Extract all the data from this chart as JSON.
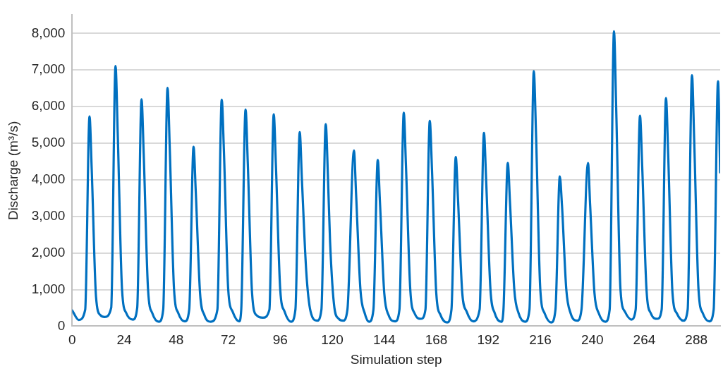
{
  "chart_data": {
    "type": "line",
    "xlabel": "Simulation step",
    "ylabel": "Discharge (m³/s)",
    "x": [
      0,
      3,
      6,
      8,
      9,
      11,
      13,
      15,
      18,
      20,
      21,
      23,
      25,
      28,
      30,
      32,
      33,
      35,
      37,
      40,
      42,
      44,
      45,
      47,
      49,
      52,
      54,
      56,
      57,
      59,
      61,
      64,
      67,
      69,
      70,
      72,
      74,
      77,
      78,
      80,
      81,
      83,
      85,
      88,
      91,
      93,
      94,
      96,
      98,
      101,
      103,
      105,
      106,
      108,
      110,
      113,
      115,
      117,
      118,
      119,
      121,
      123,
      125,
      127,
      130,
      131,
      133,
      135,
      137,
      139,
      141,
      142,
      144,
      146,
      149,
      151,
      153,
      154,
      156,
      158,
      161,
      163,
      165,
      166,
      168,
      170,
      173,
      175,
      177,
      178,
      180,
      182,
      185,
      188,
      190,
      191,
      193,
      195,
      198,
      199,
      201,
      202,
      204,
      206,
      209,
      211,
      213,
      214,
      216,
      218,
      221,
      223,
      225,
      226,
      228,
      230,
      233,
      235,
      238,
      239,
      241,
      243,
      246,
      248,
      250,
      251,
      253,
      255,
      258,
      260,
      262,
      263,
      265,
      267,
      270,
      272,
      274,
      275,
      277,
      279,
      282,
      284,
      286,
      287,
      289,
      291,
      294,
      296,
      298,
      299
    ],
    "series": [
      {
        "color": "#0070c0",
        "values": [
          430,
          170,
          450,
          5730,
          4300,
          800,
          300,
          250,
          500,
          7110,
          5300,
          1000,
          350,
          180,
          500,
          6200,
          4700,
          1000,
          350,
          120,
          450,
          6510,
          4900,
          1000,
          350,
          130,
          450,
          4900,
          3700,
          900,
          300,
          120,
          450,
          6190,
          4800,
          1000,
          400,
          130,
          450,
          5920,
          4500,
          900,
          300,
          230,
          450,
          5790,
          4400,
          1000,
          400,
          120,
          450,
          5300,
          4000,
          1500,
          400,
          150,
          450,
          5520,
          4100,
          2300,
          500,
          200,
          150,
          450,
          4800,
          3600,
          1000,
          350,
          120,
          450,
          4540,
          3400,
          900,
          300,
          130,
          450,
          5830,
          4400,
          1000,
          350,
          200,
          450,
          5610,
          4300,
          900,
          300,
          100,
          450,
          4620,
          3500,
          900,
          400,
          130,
          450,
          5280,
          4000,
          1000,
          350,
          120,
          450,
          4460,
          3400,
          1000,
          350,
          120,
          450,
          6970,
          5300,
          1000,
          350,
          100,
          450,
          4090,
          3300,
          1000,
          350,
          150,
          450,
          4460,
          3300,
          900,
          350,
          120,
          450,
          8060,
          6000,
          1000,
          400,
          180,
          450,
          5750,
          4400,
          1000,
          350,
          200,
          450,
          6230,
          4700,
          900,
          350,
          150,
          450,
          6860,
          5100,
          1000,
          350,
          130,
          450,
          6690,
          4200
        ]
      }
    ],
    "xlim": [
      0,
      299
    ],
    "xticks": [
      0,
      24,
      48,
      72,
      96,
      120,
      144,
      168,
      192,
      216,
      240,
      264,
      288
    ],
    "ylim": [
      0,
      8500
    ],
    "yticks": [
      {
        "value": 0,
        "label": "0"
      },
      {
        "value": 1000,
        "label": "1,000"
      },
      {
        "value": 2000,
        "label": "2,000"
      },
      {
        "value": 3000,
        "label": "3,000"
      },
      {
        "value": 4000,
        "label": "4,000"
      },
      {
        "value": 5000,
        "label": "5,000"
      },
      {
        "value": 6000,
        "label": "6,000"
      },
      {
        "value": 7000,
        "label": "7,000"
      },
      {
        "value": 8000,
        "label": "8,000"
      }
    ],
    "grid": "y",
    "legend": false,
    "marker": "none",
    "line_style": "solid"
  }
}
